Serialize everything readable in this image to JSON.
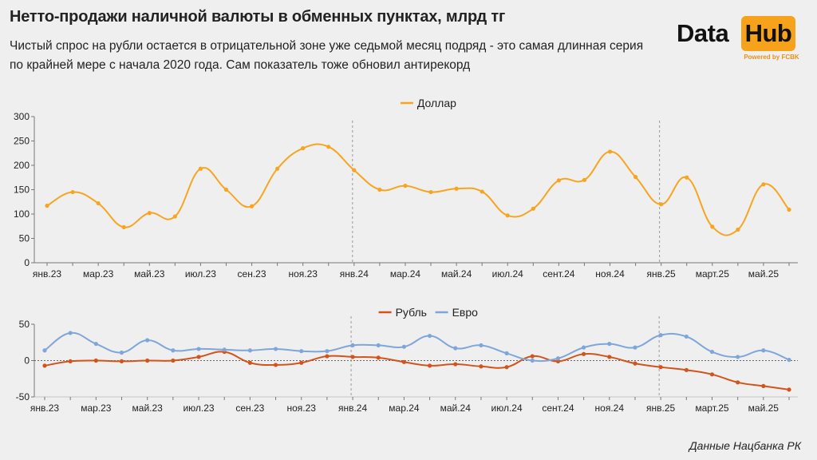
{
  "header": {
    "title": "Нетто-продажи наличной валюты в обменных пунктах, млрд тг",
    "subtitle": "Чистый спрос на рубли остается в отрицательной зоне уже седьмой месяц подряд - это самая длинная серия по крайней мере с начала 2020 года. Сам показатель тоже обновил антирекорд"
  },
  "logo": {
    "word1": "Data",
    "word2": "Hub",
    "tagline": "Powered by FCBK"
  },
  "source": "Данные Нацбанка РК",
  "colors": {
    "dollar": "#f7a521",
    "ruble": "#d2541c",
    "euro": "#7ea6d9"
  },
  "chart_data": [
    {
      "type": "line",
      "x": [
        "янв.23",
        "фев.23",
        "мар.23",
        "апр.23",
        "май.23",
        "июн.23",
        "июл.23",
        "авг.23",
        "сен.23",
        "окт.23",
        "ноя.23",
        "дек.23",
        "янв.24",
        "фев.24",
        "мар.24",
        "апр.24",
        "май.24",
        "июн.24",
        "июл.24",
        "авг.24",
        "сент.24",
        "окт.24",
        "ноя.24",
        "дек.24",
        "янв.25",
        "фев.25",
        "мар.25",
        "апр.25",
        "май.25",
        "июн.25"
      ],
      "x_tick_labels": [
        "янв.23",
        "",
        "мар.23",
        "",
        "май.23",
        "",
        "июл.23",
        "",
        "сен.23",
        "",
        "ноя.23",
        "",
        "янв.24",
        "",
        "мар.24",
        "",
        "май.24",
        "",
        "июл.24",
        "",
        "сент.24",
        "",
        "ноя.24",
        "",
        "янв.25",
        "",
        "март.25",
        "",
        "май.25",
        ""
      ],
      "series": [
        {
          "name": "Доллар",
          "values": [
            117,
            145,
            122,
            73,
            102,
            95,
            193,
            150,
            116,
            193,
            235,
            238,
            190,
            150,
            158,
            145,
            152,
            146,
            97,
            111,
            169,
            170,
            228,
            176,
            120,
            175,
            74,
            68,
            161,
            109
          ]
        }
      ],
      "yticks": [
        0,
        50,
        100,
        150,
        200,
        250,
        300
      ],
      "ylim": [
        0,
        300
      ],
      "vlines": [
        "янв.24",
        "янв.25"
      ],
      "legend": "top-center"
    },
    {
      "type": "line",
      "x": [
        "янв.23",
        "фев.23",
        "мар.23",
        "апр.23",
        "май.23",
        "июн.23",
        "июл.23",
        "авг.23",
        "сен.23",
        "окт.23",
        "ноя.23",
        "дек.23",
        "янв.24",
        "фев.24",
        "мар.24",
        "апр.24",
        "май.24",
        "июн.24",
        "июл.24",
        "авг.24",
        "сент.24",
        "окт.24",
        "ноя.24",
        "дек.24",
        "янв.25",
        "фев.25",
        "мар.25",
        "апр.25",
        "май.25",
        "июн.25"
      ],
      "x_tick_labels": [
        "янв.23",
        "",
        "мар.23",
        "",
        "май.23",
        "",
        "июл.23",
        "",
        "сен.23",
        "",
        "ноя.23",
        "",
        "янв.24",
        "",
        "мар.24",
        "",
        "май.24",
        "",
        "июл.24",
        "",
        "сент.24",
        "",
        "ноя.24",
        "",
        "янв.25",
        "",
        "март.25",
        "",
        "май.25",
        ""
      ],
      "series": [
        {
          "name": "Рубль",
          "values": [
            -7,
            -1,
            0,
            -1,
            0,
            0,
            5,
            12,
            -3,
            -6,
            -3,
            6,
            5,
            4,
            -2,
            -7,
            -5,
            -8,
            -9,
            6,
            -1,
            9,
            5,
            -4,
            -9,
            -13,
            -19,
            -30,
            -35,
            -40
          ]
        },
        {
          "name": "Евро",
          "values": [
            14,
            38,
            23,
            11,
            28,
            14,
            16,
            15,
            14,
            16,
            13,
            13,
            21,
            21,
            19,
            34,
            17,
            21,
            10,
            0,
            3,
            18,
            23,
            18,
            35,
            33,
            12,
            5,
            14,
            1
          ]
        }
      ],
      "yticks": [
        -50,
        0,
        50
      ],
      "ylim": [
        -50,
        50
      ],
      "vlines": [
        "янв.24",
        "янв.25"
      ],
      "legend": "top-center"
    }
  ]
}
